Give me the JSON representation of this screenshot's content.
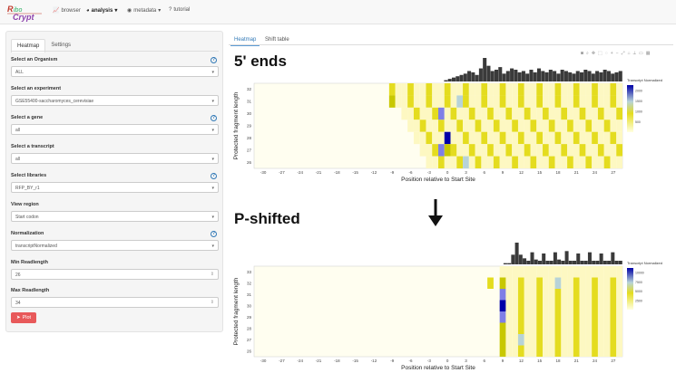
{
  "nav": {
    "logo_text": "RiboCrypt",
    "items": [
      {
        "label": "browser",
        "icon": "chart-icon",
        "active": false
      },
      {
        "label": "analysis",
        "icon": "gauge-icon",
        "active": true,
        "caret": "▾"
      },
      {
        "label": "metadata",
        "icon": "database-icon",
        "active": false,
        "caret": "▾"
      },
      {
        "label": "tutorial",
        "icon": "question-icon",
        "active": false
      }
    ]
  },
  "sidebar": {
    "tabs": [
      "Heatmap",
      "Settings"
    ],
    "fields": [
      {
        "label": "Select an Organism",
        "value": "ALL",
        "help": true,
        "kind": "select"
      },
      {
        "label": "Select an experiment",
        "value": "GSE55400-saccharomyces_cerevisiae",
        "help": false,
        "kind": "select"
      },
      {
        "label": "Select a gene",
        "value": "all",
        "help": true,
        "kind": "select"
      },
      {
        "label": "Select a transcript",
        "value": "all",
        "help": false,
        "kind": "select"
      },
      {
        "label": "Select libraries",
        "value": "RFP_BY_r1",
        "help": true,
        "kind": "select"
      },
      {
        "label": "View region",
        "value": "Start codon",
        "help": false,
        "kind": "select"
      },
      {
        "label": "Normalization",
        "value": "transcriptNormalized",
        "help": true,
        "kind": "select"
      },
      {
        "label": "Min Readlength",
        "value": "26",
        "help": false,
        "kind": "number"
      },
      {
        "label": "Max Readlength",
        "value": "34",
        "help": false,
        "kind": "number"
      }
    ],
    "plot_button": "Plot"
  },
  "main": {
    "tabs": [
      "Heatmap",
      "Shift table"
    ],
    "annotation_top": "5' ends",
    "annotation_bottom": "P-shifted",
    "toolbar_icons": [
      "camera-icon",
      "zoom-icon",
      "pan-icon",
      "select-icon",
      "lasso-icon",
      "zoom-in-icon",
      "zoom-out-icon",
      "autoscale-icon",
      "reset-icon",
      "spike-icon",
      "hover-icon",
      "plotly-logo-icon"
    ]
  },
  "chart_data": [
    {
      "type": "heatmap",
      "title": "5' ends",
      "xlabel": "Position relative to Start Site",
      "ylabel": "Protected fragment length",
      "x_ticks": [
        "-30",
        "-27",
        "-24",
        "-21",
        "-18",
        "-15",
        "-12",
        "-9",
        "-6",
        "-3",
        "0",
        "3",
        "6",
        "9",
        "12",
        "15",
        "18",
        "21",
        "24",
        "27"
      ],
      "y_ticks": [
        "26",
        "27",
        "28",
        "29",
        "30",
        "31",
        "32"
      ],
      "legend_title": "Transcript Normalized",
      "legend_ticks": [
        "500",
        "1000",
        "1500",
        "2000"
      ],
      "top_histogram": [
        0,
        0,
        0,
        0,
        0,
        0,
        0,
        0,
        0,
        0,
        0,
        0,
        0,
        0,
        0,
        0,
        0,
        0,
        0,
        0,
        0,
        0,
        0,
        0,
        0,
        0,
        0,
        0,
        0,
        0,
        0,
        0,
        0,
        0,
        0,
        0,
        0,
        0,
        0,
        0,
        0,
        0,
        0,
        0,
        0,
        0,
        0,
        0,
        0,
        1,
        2,
        3,
        4,
        5,
        6,
        8,
        7,
        5,
        10,
        18,
        12,
        8,
        9,
        11,
        6,
        8,
        10,
        9,
        7,
        8,
        6,
        9,
        7,
        10,
        8,
        7,
        9,
        8,
        6,
        9,
        8,
        7,
        6,
        8,
        7,
        9,
        8,
        6,
        8,
        7,
        9,
        8,
        6,
        7,
        8
      ]
    },
    {
      "type": "heatmap",
      "title": "P-shifted",
      "xlabel": "Position relative to Start Site",
      "ylabel": "Protected fragment length",
      "x_ticks": [
        "-30",
        "-27",
        "-24",
        "-21",
        "-18",
        "-15",
        "-12",
        "-9",
        "-6",
        "-3",
        "0",
        "3",
        "6",
        "9",
        "12",
        "15",
        "18",
        "21",
        "24",
        "27"
      ],
      "y_ticks": [
        "26",
        "27",
        "28",
        "29",
        "30",
        "31",
        "32",
        "33"
      ],
      "legend_title": "Transcript Normalized",
      "legend_ticks": [
        "2500",
        "5000",
        "7500",
        "10000"
      ],
      "top_histogram": [
        0,
        0,
        0,
        0,
        0,
        0,
        0,
        0,
        0,
        0,
        0,
        0,
        0,
        0,
        0,
        0,
        0,
        0,
        0,
        0,
        0,
        0,
        0,
        0,
        0,
        0,
        0,
        0,
        0,
        0,
        0,
        0,
        0,
        0,
        0,
        0,
        0,
        0,
        0,
        0,
        0,
        0,
        0,
        0,
        0,
        0,
        0,
        0,
        0,
        0,
        0,
        0,
        0,
        0,
        0,
        0,
        0,
        0,
        0,
        0,
        0,
        0,
        0,
        0,
        0,
        1,
        1,
        8,
        18,
        8,
        5,
        3,
        10,
        4,
        3,
        9,
        3,
        3,
        10,
        4,
        3,
        11,
        3,
        3,
        9,
        3,
        3,
        10,
        3,
        3,
        9,
        3,
        3,
        10,
        3,
        3
      ]
    }
  ]
}
